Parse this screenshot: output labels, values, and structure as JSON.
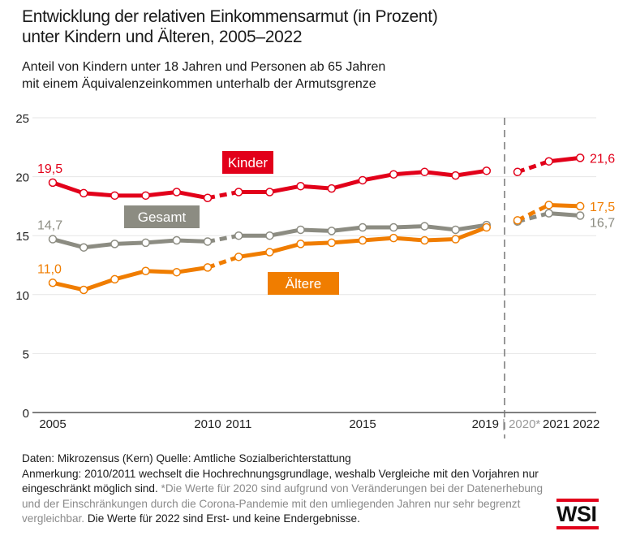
{
  "title": [
    "Entwicklung der relativen Einkommensarmut (in Prozent)",
    "unter Kindern und Älteren, 2005–2022"
  ],
  "subtitle": [
    "Anteil von Kindern unter 18 Jahren und Personen ab 65 Jahren",
    "mit einem Äquivalenzeinkommen unterhalb der Armutsgrenze"
  ],
  "footer": {
    "line1": "Daten: Mikrozensus (Kern)   Quelle: Amtliche Sozialberichterstattung",
    "note_a": "Anmerkung: 2010/2011 wechselt die Hochrechnungsgrundlage, weshalb Vergleiche mit den Vorjahren nur eingeschränkt möglich sind.",
    "note_b": "*Die Werte für 2020 sind aufgrund von Veränderungen bei der Datenerhebung und der Einschränkungen durch die Corona-Pandemie mit den umliegenden Jahren nur sehr begrenzt vergleichbar.",
    "note_c": "Die Werte für 2022 sind Erst- und keine Endergebnisse."
  },
  "logo": "WSI",
  "chart_data": {
    "type": "line",
    "ylim": [
      0,
      25
    ],
    "yticks": [
      0,
      5,
      10,
      15,
      20,
      25
    ],
    "xticks": [
      {
        "year": 2005,
        "label": "2005"
      },
      {
        "year": 2010,
        "label": "2010"
      },
      {
        "year": 2011,
        "label": "2011"
      },
      {
        "year": 2015,
        "label": "2015"
      },
      {
        "year": 2019,
        "label": "2019"
      },
      {
        "year": 2020,
        "label": "| 2020*"
      },
      {
        "year": 2021,
        "label": "2021"
      },
      {
        "year": 2022,
        "label": "2022"
      }
    ],
    "x": [
      2005,
      2006,
      2007,
      2008,
      2009,
      2010,
      2011,
      2012,
      2013,
      2014,
      2015,
      2016,
      2017,
      2018,
      2019,
      2020,
      2021,
      2022
    ],
    "grid": true,
    "series": [
      {
        "name": "Kinder",
        "color": "#e2001a",
        "values": [
          19.5,
          18.6,
          18.4,
          18.4,
          18.7,
          18.2,
          18.7,
          18.7,
          19.2,
          19.0,
          19.7,
          20.2,
          20.4,
          20.1,
          20.5,
          20.4,
          21.3,
          21.6
        ],
        "start_label": "19,5",
        "end_label": "21,6"
      },
      {
        "name": "Gesamt",
        "color": "#8c8c82",
        "values": [
          14.7,
          14.0,
          14.3,
          14.4,
          14.6,
          14.5,
          15.0,
          15.0,
          15.5,
          15.4,
          15.7,
          15.7,
          15.8,
          15.5,
          15.9,
          16.2,
          16.9,
          16.7
        ],
        "start_label": "14,7",
        "end_label": "16,7"
      },
      {
        "name": "Ältere",
        "color": "#f07d00",
        "values": [
          11.0,
          10.4,
          11.3,
          12.0,
          11.9,
          12.3,
          13.2,
          13.6,
          14.3,
          14.4,
          14.6,
          14.8,
          14.6,
          14.7,
          15.7,
          16.3,
          17.6,
          17.5
        ],
        "start_label": "11,0",
        "end_label": "17,5"
      }
    ]
  }
}
